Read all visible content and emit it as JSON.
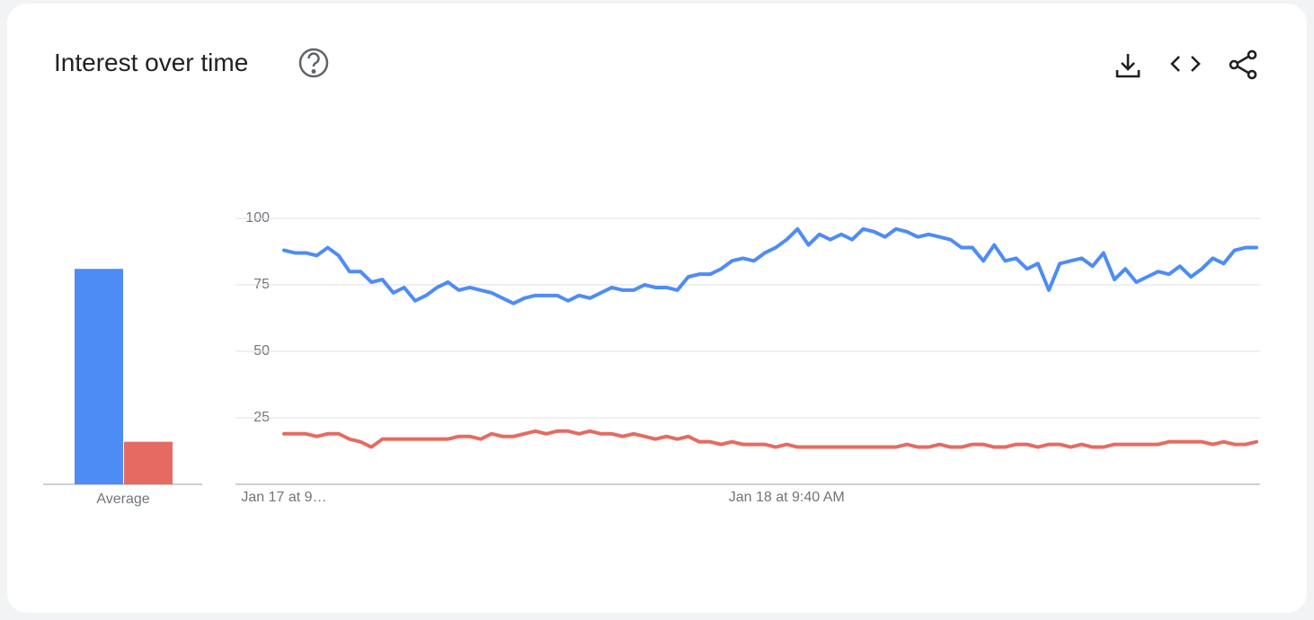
{
  "title": "Interest over time",
  "chart_data": [
    {
      "type": "bar",
      "categories": [
        "Average"
      ],
      "ylim": [
        0,
        100
      ],
      "series": [
        {
          "color": "#4e8cf5",
          "values": [
            81
          ]
        },
        {
          "color": "#e56b62",
          "values": [
            16
          ]
        }
      ]
    },
    {
      "type": "line",
      "ylim": [
        0,
        100
      ],
      "yticks": [
        25,
        50,
        75,
        100
      ],
      "grid": true,
      "categories": [
        "Jan 17 at 9…",
        null,
        null,
        null,
        null,
        null,
        null,
        null,
        null,
        null,
        null,
        null,
        null,
        null,
        null,
        null,
        null,
        null,
        null,
        null,
        null,
        null,
        null,
        null,
        null,
        null,
        null,
        null,
        null,
        null,
        null,
        null,
        null,
        null,
        null,
        null,
        null,
        null,
        null,
        null,
        null,
        null,
        null,
        null,
        null,
        null,
        "Jan 18 at 9:40 AM",
        null,
        null,
        null,
        null,
        null,
        null,
        null,
        null,
        null,
        null,
        null,
        null,
        null,
        null,
        null,
        null,
        null,
        null,
        null,
        null,
        null,
        null,
        null,
        null,
        null,
        null,
        null,
        null,
        null,
        null,
        null,
        null,
        null,
        null,
        null,
        null,
        null,
        null,
        null,
        null,
        null,
        null,
        null
      ],
      "series": [
        {
          "color": "#4e8cf5",
          "values": [
            88,
            87,
            87,
            86,
            89,
            86,
            80,
            80,
            76,
            77,
            72,
            74,
            69,
            71,
            74,
            76,
            73,
            74,
            73,
            72,
            70,
            68,
            70,
            71,
            71,
            71,
            69,
            71,
            70,
            72,
            74,
            73,
            73,
            75,
            74,
            74,
            73,
            78,
            79,
            79,
            81,
            84,
            85,
            84,
            87,
            89,
            92,
            96,
            90,
            94,
            92,
            94,
            92,
            96,
            95,
            93,
            96,
            95,
            93,
            94,
            93,
            92,
            89,
            89,
            84,
            90,
            84,
            85,
            81,
            83,
            73,
            83,
            84,
            85,
            82,
            87,
            77,
            81,
            76,
            78,
            80,
            79,
            82,
            78,
            81,
            85,
            83,
            88,
            89,
            89
          ]
        },
        {
          "color": "#e56b62",
          "values": [
            19,
            19,
            19,
            18,
            19,
            19,
            17,
            16,
            14,
            17,
            17,
            17,
            17,
            17,
            17,
            17,
            18,
            18,
            17,
            19,
            18,
            18,
            19,
            20,
            19,
            20,
            20,
            19,
            20,
            19,
            19,
            18,
            19,
            18,
            17,
            18,
            17,
            18,
            16,
            16,
            15,
            16,
            15,
            15,
            15,
            14,
            15,
            14,
            14,
            14,
            14,
            14,
            14,
            14,
            14,
            14,
            14,
            15,
            14,
            14,
            15,
            14,
            14,
            15,
            15,
            14,
            14,
            15,
            15,
            14,
            15,
            15,
            14,
            15,
            14,
            14,
            15,
            15,
            15,
            15,
            15,
            16,
            16,
            16,
            16,
            15,
            16,
            15,
            15,
            16
          ]
        }
      ]
    }
  ]
}
